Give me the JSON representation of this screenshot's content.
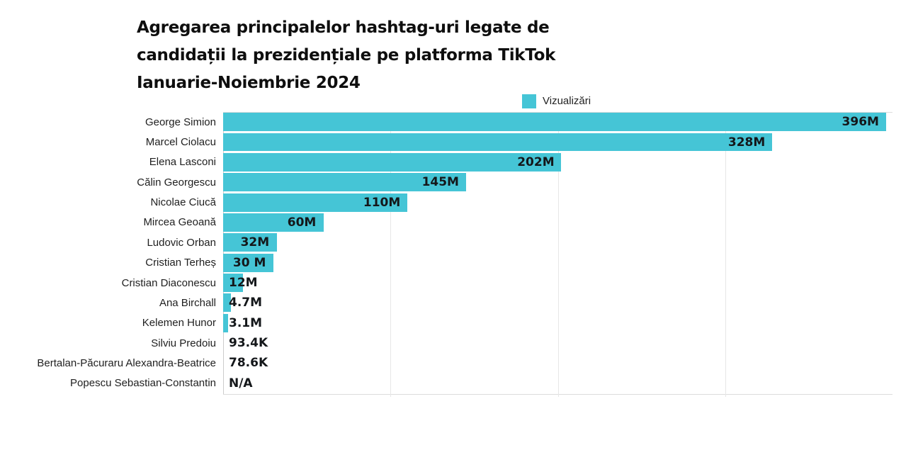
{
  "header": {
    "title_lines": [
      "Agregarea principalelor hashtag-uri legate de",
      "candidații la prezidențiale pe platforma TikTok",
      "Ianuarie-Noiembrie 2024"
    ]
  },
  "legend": {
    "label": "Vizualizări",
    "position": "top-right"
  },
  "colors": {
    "bar": "#45c5d6",
    "grid": "#e7e7e7",
    "axis": "#cccccc",
    "border": "#dcdcdc",
    "title_text": "#0e0e0e",
    "category_text": "#212121",
    "value_text": "#14171a"
  },
  "chart_data": {
    "type": "bar",
    "orientation": "horizontal",
    "title": "Agregarea principalelor hashtag-uri legate de candidații la prezidențiale pe platforma TikTok Ianuarie-Noiembrie 2024",
    "xlabel": "",
    "ylabel": "",
    "legend": [
      "Vizualizări"
    ],
    "grid": "vertical",
    "xlim_millions": [
      0,
      400
    ],
    "gridlines_millions": [
      100,
      200,
      300
    ],
    "items": [
      {
        "name": "George Simion",
        "views_label": "396M",
        "views_millions": 396
      },
      {
        "name": "Marcel Ciolacu",
        "views_label": "328M",
        "views_millions": 328
      },
      {
        "name": "Elena Lasconi",
        "views_label": "202M",
        "views_millions": 202
      },
      {
        "name": "Călin Georgescu",
        "views_label": "145M",
        "views_millions": 145
      },
      {
        "name": "Nicolae Ciucă",
        "views_label": "110M",
        "views_millions": 110
      },
      {
        "name": "Mircea Geoană",
        "views_label": "60M",
        "views_millions": 60
      },
      {
        "name": "Ludovic Orban",
        "views_label": "32M",
        "views_millions": 32
      },
      {
        "name": "Cristian Terheș",
        "views_label": "30 M",
        "views_millions": 30
      },
      {
        "name": "Cristian Diaconescu",
        "views_label": "12M",
        "views_millions": 12
      },
      {
        "name": "Ana Birchall",
        "views_label": "4.7M",
        "views_millions": 4.7
      },
      {
        "name": "Kelemen Hunor",
        "views_label": "3.1M",
        "views_millions": 3.1
      },
      {
        "name": "Silviu Predoiu",
        "views_label": "93.4K",
        "views_millions": 0.0934
      },
      {
        "name": "Bertalan-Păcuraru Alexandra-Beatrice",
        "views_label": "78.6K",
        "views_millions": 0.0786
      },
      {
        "name": "Popescu Sebastian-Constantin",
        "views_label": "N/A",
        "views_millions": null
      }
    ]
  }
}
